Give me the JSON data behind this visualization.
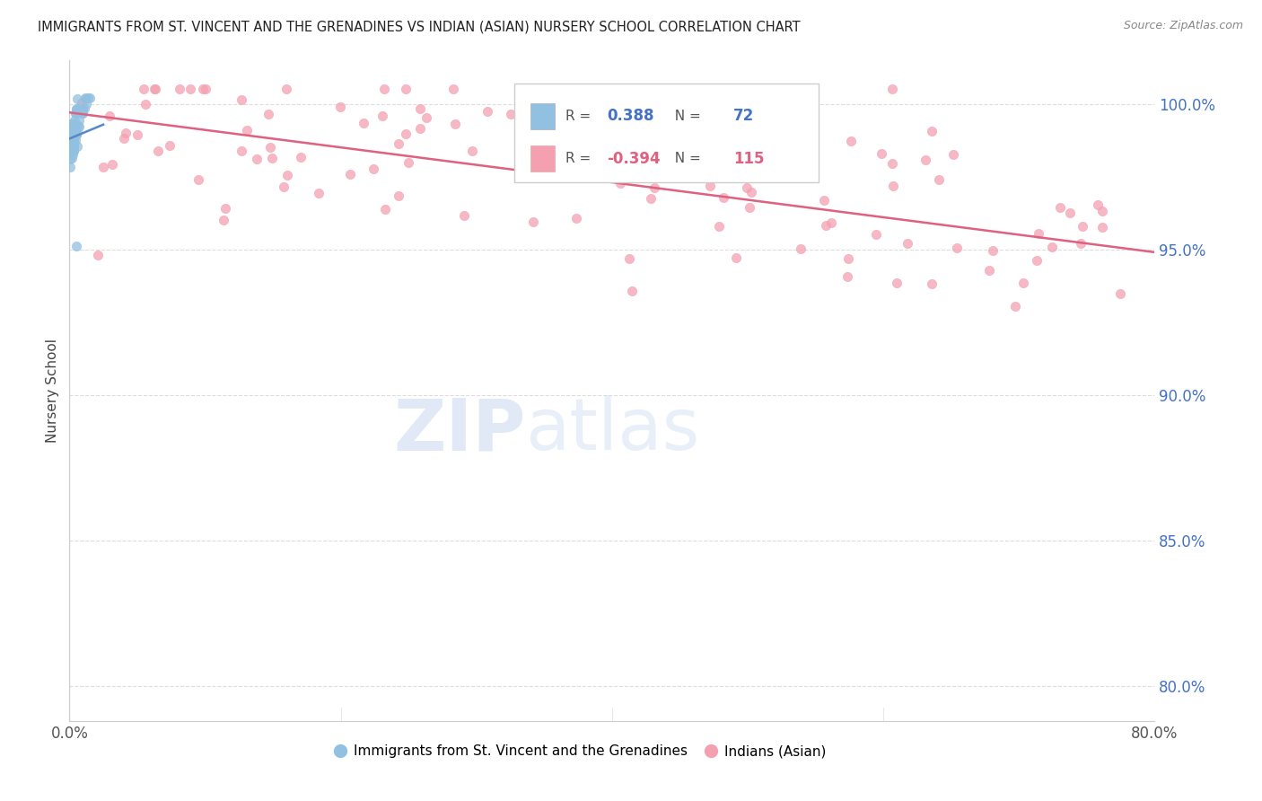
{
  "title": "IMMIGRANTS FROM ST. VINCENT AND THE GRENADINES VS INDIAN (ASIAN) NURSERY SCHOOL CORRELATION CHART",
  "source": "Source: ZipAtlas.com",
  "ylabel": "Nursery School",
  "ytick_labels": [
    "100.0%",
    "95.0%",
    "90.0%",
    "85.0%",
    "80.0%"
  ],
  "ytick_values": [
    1.0,
    0.95,
    0.9,
    0.85,
    0.8
  ],
  "xlim": [
    0.0,
    0.8
  ],
  "ylim": [
    0.788,
    1.015
  ],
  "blue_R": 0.388,
  "blue_N": 72,
  "pink_R": -0.394,
  "pink_N": 115,
  "blue_color": "#92c0e0",
  "pink_color": "#f4a0b0",
  "trendline_blue_color": "#5588cc",
  "trendline_pink_color": "#e06080",
  "legend_label_blue": "Immigrants from St. Vincent and the Grenadines",
  "legend_label_pink": "Indians (Asian)",
  "watermark_zip": "ZIP",
  "watermark_atlas": "atlas",
  "background_color": "#ffffff"
}
